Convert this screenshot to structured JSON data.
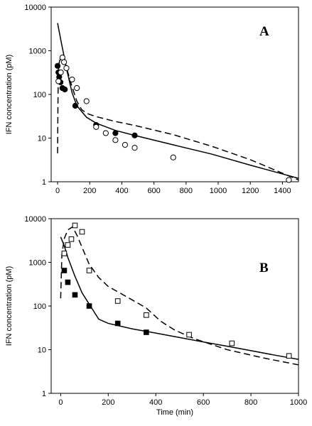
{
  "chart_data": [
    {
      "type": "scatter",
      "panel_label": "A",
      "ylabel": "IFN concentration (pM)",
      "xlabel": "",
      "y_scale": "log",
      "xlim": [
        -40,
        1500
      ],
      "ylim": [
        1,
        10000
      ],
      "x_ticks": [
        0,
        200,
        400,
        600,
        800,
        1000,
        1200,
        1400
      ],
      "y_ticks": [
        1,
        10,
        100,
        1000,
        10000
      ],
      "y_tick_labels": [
        "1",
        "10",
        "100",
        "1000",
        "10000"
      ],
      "series": [
        {
          "marker": "filled-circle",
          "points": [
            [
              0,
              450
            ],
            [
              5,
              320
            ],
            [
              10,
              250
            ],
            [
              18,
              190
            ],
            [
              30,
              140
            ],
            [
              45,
              130
            ],
            [
              110,
              55
            ],
            [
              240,
              20
            ],
            [
              360,
              13
            ],
            [
              480,
              11.5
            ]
          ]
        },
        {
          "marker": "open-circle",
          "points": [
            [
              5,
              200
            ],
            [
              20,
              320
            ],
            [
              30,
              700
            ],
            [
              40,
              550
            ],
            [
              55,
              400
            ],
            [
              90,
              220
            ],
            [
              120,
              140
            ],
            [
              180,
              70
            ],
            [
              240,
              18
            ],
            [
              300,
              13
            ],
            [
              360,
              9
            ],
            [
              420,
              7
            ],
            [
              480,
              6
            ],
            [
              720,
              3.6
            ],
            [
              1440,
              1.1
            ]
          ]
        },
        {
          "line": "solid",
          "points": [
            [
              0,
              4300
            ],
            [
              15,
              2200
            ],
            [
              30,
              1150
            ],
            [
              60,
              330
            ],
            [
              90,
              110
            ],
            [
              120,
              55
            ],
            [
              180,
              30
            ],
            [
              240,
              22
            ],
            [
              360,
              15
            ],
            [
              480,
              11.5
            ],
            [
              720,
              7
            ],
            [
              960,
              4.3
            ],
            [
              1200,
              2.4
            ],
            [
              1500,
              1.2
            ]
          ]
        },
        {
          "line": "dashed",
          "points": [
            [
              0,
              4.5
            ],
            [
              2,
              50
            ],
            [
              4,
              250
            ],
            [
              8,
              500
            ],
            [
              15,
              620
            ],
            [
              25,
              680
            ],
            [
              35,
              650
            ],
            [
              45,
              540
            ],
            [
              60,
              360
            ],
            [
              90,
              150
            ],
            [
              120,
              70
            ],
            [
              150,
              45
            ],
            [
              180,
              37
            ],
            [
              240,
              31
            ],
            [
              360,
              24
            ],
            [
              480,
              19.5
            ],
            [
              720,
              12
            ],
            [
              960,
              6.5
            ],
            [
              1200,
              3.2
            ],
            [
              1500,
              1.1
            ]
          ]
        }
      ]
    },
    {
      "type": "scatter",
      "panel_label": "B",
      "ylabel": "IFN concentration (pM)",
      "xlabel": "Time (min)",
      "y_scale": "log",
      "xlim": [
        -40,
        1000
      ],
      "ylim": [
        1,
        10000
      ],
      "x_ticks": [
        0,
        200,
        400,
        600,
        800,
        1000
      ],
      "y_ticks": [
        1,
        10,
        100,
        1000,
        10000
      ],
      "y_tick_labels": [
        "1",
        "10",
        "100",
        "1000",
        "10000"
      ],
      "series": [
        {
          "marker": "filled-square",
          "points": [
            [
              15,
              650
            ],
            [
              30,
              350
            ],
            [
              60,
              180
            ],
            [
              120,
              100
            ],
            [
              240,
              40
            ],
            [
              360,
              25
            ]
          ]
        },
        {
          "marker": "open-square",
          "points": [
            [
              15,
              1600
            ],
            [
              30,
              2500
            ],
            [
              45,
              3400
            ],
            [
              60,
              7000
            ],
            [
              90,
              5000
            ],
            [
              120,
              650
            ],
            [
              240,
              130
            ],
            [
              360,
              62
            ],
            [
              540,
              22
            ],
            [
              720,
              14
            ],
            [
              960,
              7.2
            ]
          ]
        },
        {
          "line": "solid",
          "points": [
            [
              0,
              3800
            ],
            [
              15,
              2400
            ],
            [
              30,
              1300
            ],
            [
              60,
              480
            ],
            [
              90,
              200
            ],
            [
              120,
              110
            ],
            [
              160,
              50
            ],
            [
              200,
              40
            ],
            [
              300,
              30
            ],
            [
              400,
              24
            ],
            [
              500,
              19
            ],
            [
              600,
              15
            ],
            [
              700,
              12
            ],
            [
              800,
              9.5
            ],
            [
              900,
              7.5
            ],
            [
              1000,
              6
            ]
          ]
        },
        {
          "line": "dashed",
          "points": [
            [
              0,
              150
            ],
            [
              5,
              1500
            ],
            [
              15,
              3500
            ],
            [
              30,
              5500
            ],
            [
              50,
              6500
            ],
            [
              70,
              4000
            ],
            [
              90,
              2200
            ],
            [
              120,
              900
            ],
            [
              160,
              450
            ],
            [
              200,
              280
            ],
            [
              280,
              160
            ],
            [
              360,
              90
            ],
            [
              420,
              45
            ],
            [
              480,
              28
            ],
            [
              560,
              18
            ],
            [
              700,
              10
            ],
            [
              850,
              6.5
            ],
            [
              1000,
              4.5
            ]
          ]
        }
      ]
    }
  ]
}
